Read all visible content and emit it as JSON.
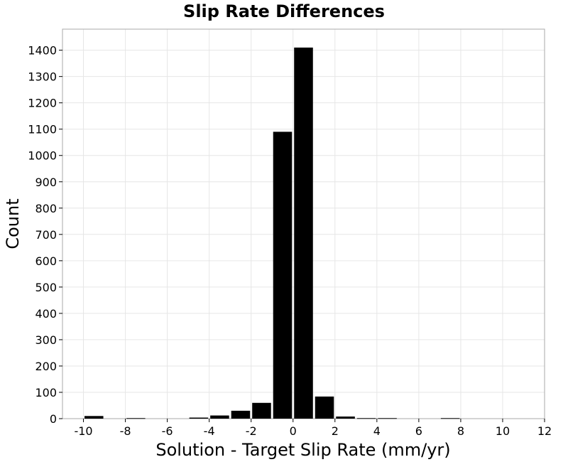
{
  "chart_data": {
    "type": "bar",
    "title": "Slip Rate Differences",
    "xlabel": "Solution - Target Slip Rate (mm/yr)",
    "ylabel": "Count",
    "xlim": [
      -11,
      12
    ],
    "ylim": [
      0,
      1480
    ],
    "x_ticks": [
      "-10",
      "-8",
      "-6",
      "-4",
      "-2",
      "0",
      "2",
      "4",
      "6",
      "8",
      "10",
      "12"
    ],
    "x_tick_values": [
      -10,
      -8,
      -6,
      -4,
      -2,
      0,
      2,
      4,
      6,
      8,
      10,
      12
    ],
    "y_ticks": [
      "0",
      "100",
      "200",
      "300",
      "400",
      "500",
      "600",
      "700",
      "800",
      "900",
      "1000",
      "1100",
      "1200",
      "1300",
      "1400"
    ],
    "y_tick_values": [
      0,
      100,
      200,
      300,
      400,
      500,
      600,
      700,
      800,
      900,
      1000,
      1100,
      1200,
      1300,
      1400
    ],
    "grid": true,
    "bar_color": "#000000",
    "bins": [
      {
        "x": -9.5,
        "value": 10
      },
      {
        "x": -8.5,
        "value": 0
      },
      {
        "x": -7.5,
        "value": 2
      },
      {
        "x": -6.5,
        "value": 0
      },
      {
        "x": -5.5,
        "value": 0
      },
      {
        "x": -4.5,
        "value": 4
      },
      {
        "x": -3.5,
        "value": 12
      },
      {
        "x": -2.5,
        "value": 30
      },
      {
        "x": -1.5,
        "value": 60
      },
      {
        "x": -0.5,
        "value": 1090
      },
      {
        "x": 0.5,
        "value": 1410
      },
      {
        "x": 1.5,
        "value": 84
      },
      {
        "x": 2.5,
        "value": 8
      },
      {
        "x": 3.5,
        "value": 2
      },
      {
        "x": 4.5,
        "value": 2
      },
      {
        "x": 5.5,
        "value": 0
      },
      {
        "x": 6.5,
        "value": 0
      },
      {
        "x": 7.5,
        "value": 2
      },
      {
        "x": 8.5,
        "value": 0
      },
      {
        "x": 9.5,
        "value": 0
      },
      {
        "x": 10.5,
        "value": 0
      }
    ]
  }
}
